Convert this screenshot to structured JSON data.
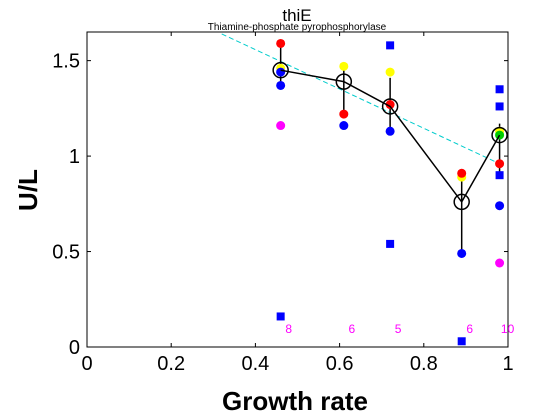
{
  "chart_data": {
    "type": "scatter",
    "title": "thiE",
    "subtitle": "Thiamine-phosphate pyrophosphorylase",
    "xlabel": "Growth rate",
    "ylabel": "U/L",
    "xlim": [
      0,
      1
    ],
    "ylim": [
      0,
      1.65
    ],
    "x_ticks": [
      "0",
      "0.2",
      "0.4",
      "0.6",
      "0.8",
      "1"
    ],
    "y_ticks": [
      "0",
      "0.5",
      "1",
      "1.5"
    ],
    "grid": false,
    "colors": {
      "mean_line": "#000000",
      "fit_line": "#00cccc",
      "red": "#ff0000",
      "yellow": "#ffff00",
      "blue": "#0000ff",
      "magenta": "#ff00ff",
      "green": "#00cc00"
    },
    "mean_series": {
      "x": [
        0.46,
        0.61,
        0.72,
        0.89,
        0.98
      ],
      "y": [
        1.45,
        1.39,
        1.26,
        0.76,
        1.11
      ],
      "err_low": [
        1.36,
        1.22,
        1.13,
        0.49,
        0.91
      ],
      "err_high": [
        1.57,
        1.45,
        1.41,
        0.89,
        1.17
      ]
    },
    "fit_line": {
      "x": [
        0.32,
        0.98
      ],
      "y": [
        1.64,
        0.96
      ]
    },
    "points": {
      "red": {
        "x": [
          0.46,
          0.61,
          0.72,
          0.89,
          0.98
        ],
        "y": [
          1.59,
          1.22,
          1.27,
          0.91,
          0.96
        ]
      },
      "yellow": {
        "x": [
          0.46,
          0.61,
          0.72,
          0.89,
          0.98
        ],
        "y": [
          1.46,
          1.47,
          1.44,
          0.89,
          1.13
        ]
      },
      "blue_circle": {
        "x": [
          0.46,
          0.46,
          0.61,
          0.72,
          0.89,
          0.98
        ],
        "y": [
          1.37,
          1.44,
          1.16,
          1.13,
          0.49,
          0.74
        ]
      },
      "blue_square": {
        "x": [
          0.46,
          0.72,
          0.72,
          0.89,
          0.98,
          0.98,
          0.98
        ],
        "y": [
          0.16,
          1.58,
          0.54,
          0.03,
          1.35,
          1.26,
          0.9
        ]
      },
      "magenta": {
        "x": [
          0.46,
          0.98
        ],
        "y": [
          1.16,
          0.44
        ]
      },
      "green": {
        "x": [
          0.98
        ],
        "y": [
          1.11
        ]
      }
    },
    "counts": {
      "x": [
        0.46,
        0.61,
        0.72,
        0.89,
        0.98
      ],
      "labels": [
        "8",
        "6",
        "5",
        "6",
        "10"
      ],
      "y": 0.1
    }
  }
}
